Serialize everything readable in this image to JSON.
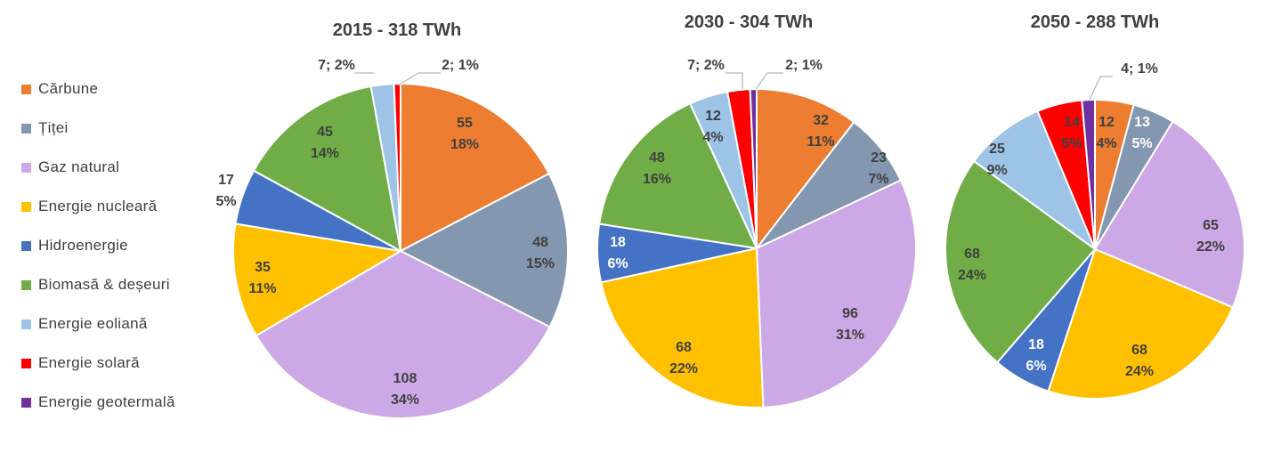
{
  "legend": [
    {
      "label": "Cărbune",
      "color": "#ED7D31"
    },
    {
      "label": "Țiței",
      "color": "#8497B0"
    },
    {
      "label": "Gaz natural",
      "color": "#CDA8E6"
    },
    {
      "label": "Energie nucleară",
      "color": "#FFC000"
    },
    {
      "label": "Hidroenergie",
      "color": "#4472C4"
    },
    {
      "label": "Biomasă & deșeuri",
      "color": "#70AD47"
    },
    {
      "label": "Energie eoliană",
      "color": "#9DC3E6"
    },
    {
      "label": "Energie solară",
      "color": "#FF0000"
    },
    {
      "label": "Energie geotermală",
      "color": "#7030A0"
    }
  ],
  "chart_data": [
    {
      "type": "pie",
      "title": "2015 - 318 TWh",
      "categories": [
        "Cărbune",
        "Țiței",
        "Gaz natural",
        "Energie nucleară",
        "Hidroenergie",
        "Biomasă & deșeuri",
        "Energie eoliană",
        "Energie solară",
        "Energie geotermală"
      ],
      "values": [
        55,
        48,
        108,
        35,
        17,
        45,
        7,
        2,
        0
      ],
      "percents": [
        "18%",
        "15%",
        "34%",
        "11%",
        "5%",
        "14%",
        "2%",
        "1%",
        ""
      ],
      "labels": [
        "55",
        "48",
        "108",
        "35",
        "17",
        "45",
        "7",
        "2",
        ""
      ]
    },
    {
      "type": "pie",
      "title": "2030 - 304 TWh",
      "categories": [
        "Cărbune",
        "Țiței",
        "Gaz natural",
        "Energie nucleară",
        "Hidroenergie",
        "Biomasă & deșeuri",
        "Energie eoliană",
        "Energie solară",
        "Energie geotermală"
      ],
      "values": [
        32,
        23,
        96,
        68,
        18,
        48,
        12,
        7,
        2
      ],
      "percents": [
        "11%",
        "7%",
        "31%",
        "22%",
        "6%",
        "16%",
        "4%",
        "2%",
        "1%"
      ],
      "labels": [
        "32",
        "23",
        "96",
        "68",
        "18",
        "48",
        "12",
        "7",
        "2"
      ]
    },
    {
      "type": "pie",
      "title": "2050 - 288 TWh",
      "categories": [
        "Cărbune",
        "Țiței",
        "Gaz natural",
        "Energie nucleară",
        "Hidroenergie",
        "Biomasă & deșeuri",
        "Energie eoliană",
        "Energie solară",
        "Energie geotermală"
      ],
      "values": [
        12,
        13,
        65,
        68,
        18,
        68,
        25,
        14,
        4
      ],
      "percents": [
        "4%",
        "5%",
        "22%",
        "24%",
        "6%",
        "24%",
        "9%",
        "5%",
        "1%"
      ],
      "labels": [
        "12",
        "13",
        "65",
        "68",
        "18",
        "68",
        "25",
        "14",
        "4"
      ]
    }
  ]
}
